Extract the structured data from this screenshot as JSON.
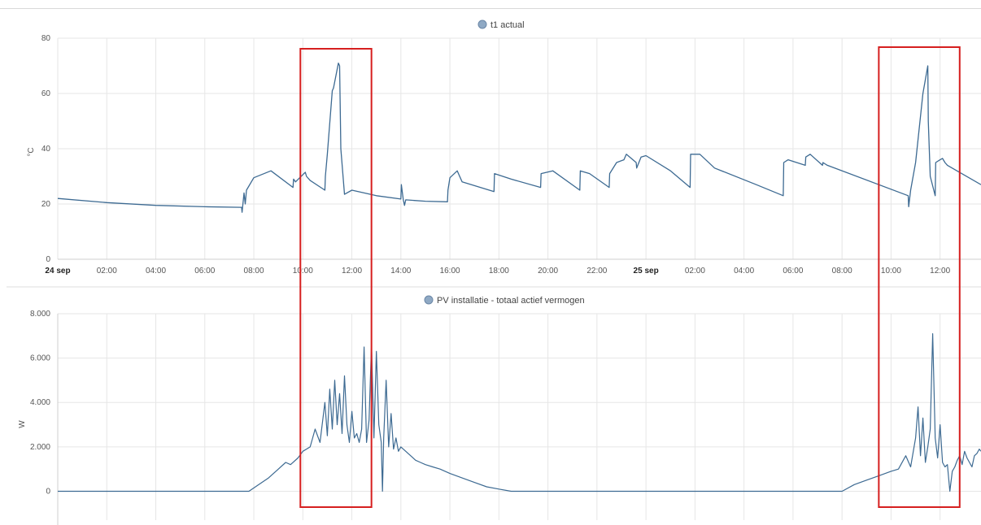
{
  "chart_data": [
    {
      "type": "line",
      "title": "t1 actual",
      "legend": {
        "label": "t1 actual",
        "position": "top-center",
        "marker_color": "#8fa9c4"
      },
      "ylabel": "°C",
      "ylim": [
        0,
        80
      ],
      "yticks": [
        "0",
        "20",
        "40",
        "60",
        "80"
      ],
      "xlim": [
        0,
        37.67
      ],
      "xticks": [
        {
          "t": 0,
          "label": "24 sep",
          "bold": true
        },
        {
          "t": 2,
          "label": "02:00"
        },
        {
          "t": 4,
          "label": "04:00"
        },
        {
          "t": 6,
          "label": "06:00"
        },
        {
          "t": 8,
          "label": "08:00"
        },
        {
          "t": 10,
          "label": "10:00"
        },
        {
          "t": 12,
          "label": "12:00"
        },
        {
          "t": 14,
          "label": "14:00"
        },
        {
          "t": 16,
          "label": "16:00"
        },
        {
          "t": 18,
          "label": "18:00"
        },
        {
          "t": 20,
          "label": "20:00"
        },
        {
          "t": 22,
          "label": "22:00"
        },
        {
          "t": 24,
          "label": "25 sep",
          "bold": true
        },
        {
          "t": 26,
          "label": "02:00"
        },
        {
          "t": 28,
          "label": "04:00"
        },
        {
          "t": 30,
          "label": "06:00"
        },
        {
          "t": 32,
          "label": "08:00"
        },
        {
          "t": 34,
          "label": "10:00"
        },
        {
          "t": 36,
          "label": "12:00"
        }
      ],
      "grid": true,
      "color": "#3d6a92",
      "x": [
        0,
        2,
        4,
        6,
        7.5,
        7.52,
        7.6,
        7.65,
        7.7,
        8,
        8.7,
        9.6,
        9.62,
        9.7,
        10.1,
        10.15,
        10.3,
        10.9,
        10.92,
        11,
        11.2,
        11.25,
        11.45,
        11.5,
        11.55,
        11.7,
        12,
        13,
        14,
        14.02,
        14.1,
        14.15,
        14.2,
        15,
        15.9,
        15.92,
        16,
        16.3,
        16.5,
        17.8,
        17.82,
        18.5,
        19.7,
        19.72,
        20.2,
        21.3,
        21.32,
        21.7,
        22.5,
        22.52,
        22.8,
        23.1,
        23.2,
        23.6,
        23.62,
        23.8,
        24,
        25,
        25.8,
        25.82,
        26.2,
        26.8,
        28.5,
        29.6,
        29.62,
        29.8,
        30.5,
        30.52,
        30.7,
        31.2,
        31.22,
        31.4,
        34.7,
        34.72,
        34.8,
        35.0,
        35.3,
        35.5,
        35.52,
        35.6,
        35.8,
        35.82,
        36,
        36.1,
        36.2,
        36.3,
        37.67
      ],
      "values": [
        22,
        20.5,
        19.5,
        19,
        18.8,
        17,
        24,
        20,
        25,
        29.5,
        32,
        26,
        29,
        28,
        31.5,
        30,
        28.5,
        25,
        30,
        38,
        61,
        62,
        71,
        70,
        40,
        23.5,
        25,
        23,
        21.8,
        27,
        21.5,
        19.5,
        21.5,
        21,
        20.8,
        25,
        29.5,
        32,
        28,
        24.5,
        31,
        29,
        26,
        31,
        32,
        25,
        32,
        31,
        26,
        31,
        35,
        36,
        38,
        35,
        33,
        37,
        37.5,
        32,
        26,
        38,
        38,
        33,
        27,
        23,
        35,
        36,
        34,
        37,
        38,
        34,
        35,
        34,
        23,
        19,
        25,
        35,
        60,
        70,
        50,
        30,
        23,
        35,
        36,
        36.5,
        35,
        34,
        27
      ]
    },
    {
      "type": "line",
      "title": "PV installatie - totaal actief vermogen",
      "legend": {
        "label": "PV installatie - totaal actief vermogen",
        "position": "top-center",
        "marker_color": "#8fa9c4"
      },
      "ylabel": "W",
      "ylim": [
        -1300,
        8000
      ],
      "yticks": [
        "0",
        "2.000",
        "4.000",
        "6.000",
        "8.000"
      ],
      "xlim": [
        0,
        37.67
      ],
      "grid": true,
      "color": "#3d6a92",
      "x": [
        0,
        7.8,
        8.2,
        8.6,
        9.0,
        9.3,
        9.5,
        9.8,
        10.0,
        10.3,
        10.5,
        10.7,
        10.9,
        11.0,
        11.1,
        11.2,
        11.3,
        11.4,
        11.5,
        11.6,
        11.7,
        11.8,
        11.9,
        12.0,
        12.1,
        12.2,
        12.3,
        12.4,
        12.5,
        12.6,
        12.7,
        12.8,
        12.9,
        13.0,
        13.1,
        13.2,
        13.25,
        13.3,
        13.4,
        13.5,
        13.6,
        13.7,
        13.8,
        13.9,
        14.0,
        14.2,
        14.4,
        14.6,
        14.8,
        15.0,
        15.3,
        15.6,
        16.0,
        16.5,
        17.0,
        17.5,
        18.0,
        18.5,
        19.0,
        19.5,
        19.8,
        32.0,
        32.5,
        33.0,
        33.5,
        34.0,
        34.3,
        34.6,
        34.8,
        35.0,
        35.1,
        35.2,
        35.3,
        35.4,
        35.5,
        35.6,
        35.7,
        35.8,
        35.9,
        36.0,
        36.1,
        36.2,
        36.3,
        36.4,
        36.5,
        36.6,
        36.7,
        36.8,
        36.9,
        37.0,
        37.1,
        37.2,
        37.3,
        37.4,
        37.5,
        37.6,
        37.67
      ],
      "values": [
        0,
        0,
        300,
        600,
        1000,
        1300,
        1200,
        1500,
        1800,
        2000,
        2800,
        2200,
        4000,
        2500,
        4600,
        2800,
        5000,
        3000,
        4400,
        2600,
        5200,
        3000,
        2200,
        3600,
        2400,
        2600,
        2200,
        2800,
        6500,
        2200,
        3200,
        6600,
        2400,
        6300,
        3000,
        2200,
        0,
        2400,
        5000,
        2000,
        3500,
        1900,
        2400,
        1800,
        2000,
        1800,
        1600,
        1400,
        1300,
        1200,
        1100,
        1000,
        800,
        600,
        400,
        200,
        100,
        0,
        0,
        0,
        0,
        0,
        300,
        500,
        700,
        900,
        1000,
        1600,
        1100,
        2400,
        3800,
        1600,
        3300,
        1300,
        2000,
        2800,
        7100,
        2400,
        1500,
        3000,
        1300,
        1100,
        1200,
        0,
        900,
        1100,
        1400,
        1600,
        1200,
        1800,
        1500,
        1300,
        1100,
        1600,
        1700,
        1900,
        1800
      ]
    }
  ],
  "annotations": [
    {
      "type": "highlight-box",
      "color": "#d61f1f",
      "x_start": 9.9,
      "x_end": 12.8
    },
    {
      "type": "highlight-box",
      "color": "#d61f1f",
      "x_start": 33.5,
      "x_end": 36.8
    }
  ]
}
